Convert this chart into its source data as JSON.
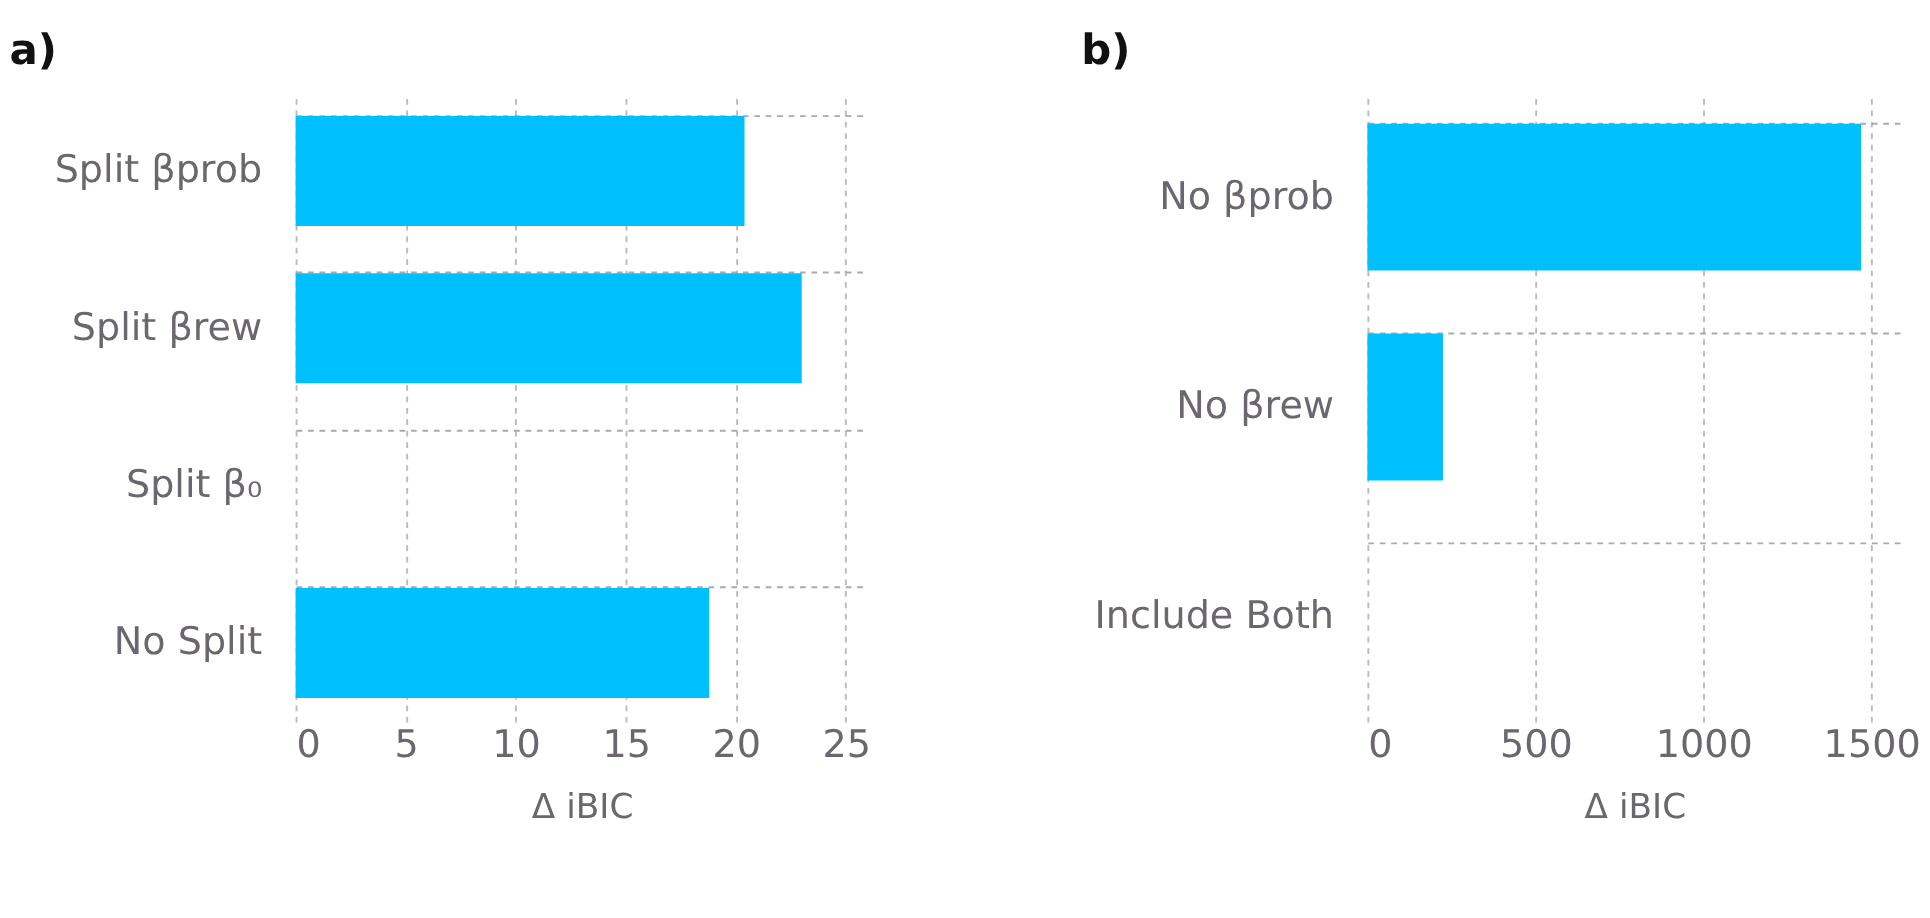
{
  "chart_data": [
    {
      "type": "bar",
      "title": "a)",
      "orientation": "horizontal",
      "categories": [
        "Split βprob",
        "Split βrew",
        "Split β₀",
        "No Split"
      ],
      "values": [
        20.4,
        23.0,
        0,
        18.8
      ],
      "color": "#00bfff",
      "xlabel": "Δ iBIC",
      "xlim": [
        0,
        26
      ],
      "xticks": [
        0,
        5,
        10,
        15,
        20,
        25
      ],
      "grid": true
    },
    {
      "type": "bar",
      "title": "b)",
      "orientation": "horizontal",
      "categories": [
        "No βprob",
        "No βrew",
        "Include Both"
      ],
      "values": [
        1470,
        225,
        0
      ],
      "color": "#00bfff",
      "xlabel": "Δ iBIC",
      "xlim": [
        0,
        1590
      ],
      "xticks": [
        0,
        500,
        1000,
        1500
      ],
      "grid": true
    }
  ]
}
